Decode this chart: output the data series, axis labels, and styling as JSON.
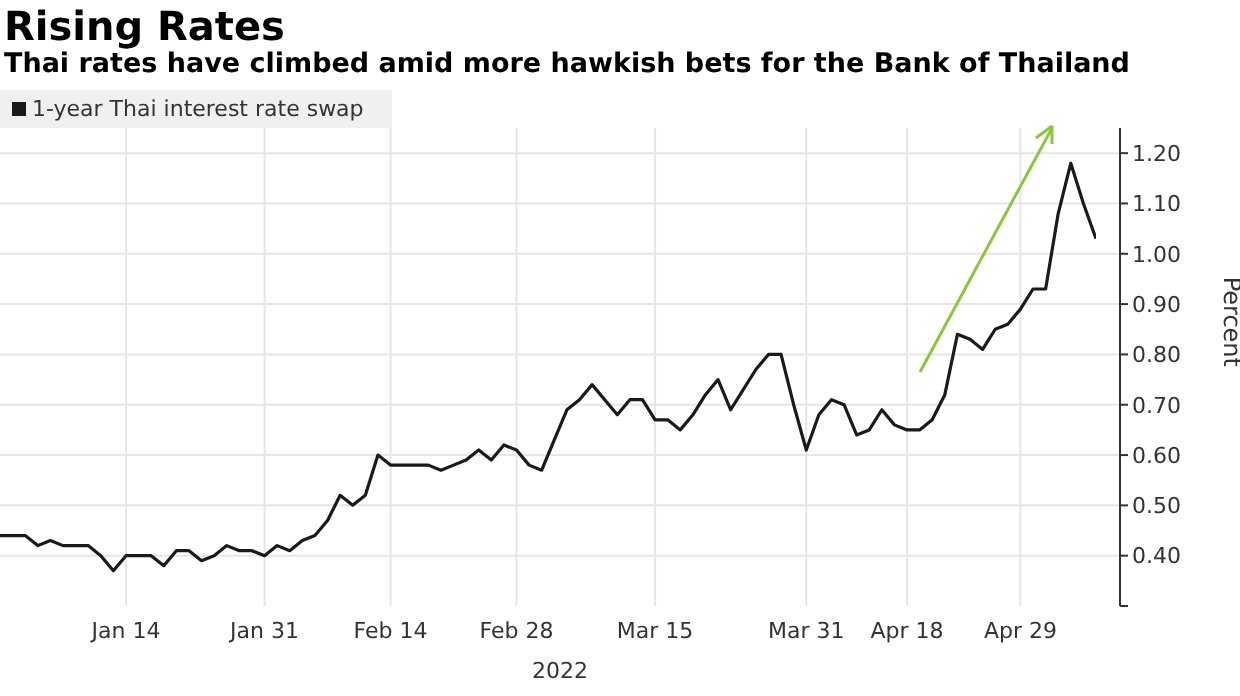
{
  "chart_data": {
    "type": "line",
    "title": "Rising Rates",
    "subtitle": "Thai rates have climbed amid more hawkish bets for the Bank of Thailand",
    "xlabel": "2022",
    "ylabel": "Percent",
    "categories": [
      null,
      null,
      null,
      null,
      null,
      null,
      null,
      null,
      null,
      null,
      "Jan 14",
      null,
      null,
      null,
      null,
      null,
      null,
      null,
      null,
      null,
      null,
      "Jan 31",
      null,
      null,
      null,
      null,
      null,
      null,
      null,
      null,
      null,
      "Feb 14",
      null,
      null,
      null,
      null,
      null,
      null,
      null,
      null,
      null,
      "Feb 28",
      null,
      null,
      null,
      null,
      null,
      null,
      null,
      null,
      null,
      null,
      "Mar 15",
      null,
      null,
      null,
      null,
      null,
      null,
      null,
      null,
      null,
      null,
      null,
      "Mar 31",
      null,
      null,
      null,
      null,
      null,
      null,
      null,
      "Apr 18",
      null,
      null,
      null,
      null,
      null,
      null,
      null,
      null,
      "Apr 29",
      null,
      null,
      null,
      null,
      null,
      null
    ],
    "series": [
      {
        "name": "1-year Thai interest rate swap",
        "color": "#1a1a1a",
        "values": [
          0.44,
          0.44,
          0.44,
          0.42,
          0.43,
          0.42,
          0.42,
          0.42,
          0.4,
          0.37,
          0.4,
          0.4,
          0.4,
          0.38,
          0.41,
          0.41,
          0.39,
          0.4,
          0.42,
          0.41,
          0.41,
          0.4,
          0.42,
          0.41,
          0.43,
          0.44,
          0.47,
          0.52,
          0.5,
          0.52,
          0.6,
          0.58,
          0.58,
          0.58,
          0.58,
          0.57,
          0.58,
          0.59,
          0.61,
          0.59,
          0.62,
          0.61,
          0.58,
          0.57,
          0.63,
          0.69,
          0.71,
          0.74,
          0.71,
          0.68,
          0.71,
          0.71,
          0.67,
          0.67,
          0.65,
          0.68,
          0.72,
          0.75,
          0.69,
          0.73,
          0.77,
          0.8,
          0.8,
          0.7,
          0.61,
          0.68,
          0.71,
          0.7,
          0.64,
          0.65,
          0.69,
          0.66,
          0.65,
          0.65,
          0.67,
          0.72,
          0.84,
          0.83,
          0.81,
          0.85,
          0.86,
          0.89,
          0.93,
          0.93,
          1.08,
          1.18,
          1.1,
          1.03
        ]
      }
    ],
    "ylim": [
      0.3,
      1.25
    ],
    "yticks": [
      {
        "value": 0.3,
        "label": null
      },
      {
        "value": 0.4,
        "label": "0.40"
      },
      {
        "value": 0.5,
        "label": "0.50"
      },
      {
        "value": 0.6,
        "label": "0.60"
      },
      {
        "value": 0.7,
        "label": "0.70"
      },
      {
        "value": 0.8,
        "label": "0.80"
      },
      {
        "value": 0.9,
        "label": "0.90"
      },
      {
        "value": 1.0,
        "label": "1.00"
      },
      {
        "value": 1.1,
        "label": "1.10"
      },
      {
        "value": 1.2,
        "label": "1.20"
      }
    ],
    "grid": true,
    "legend": "top left",
    "marker": "none",
    "line_style": "solid"
  }
}
